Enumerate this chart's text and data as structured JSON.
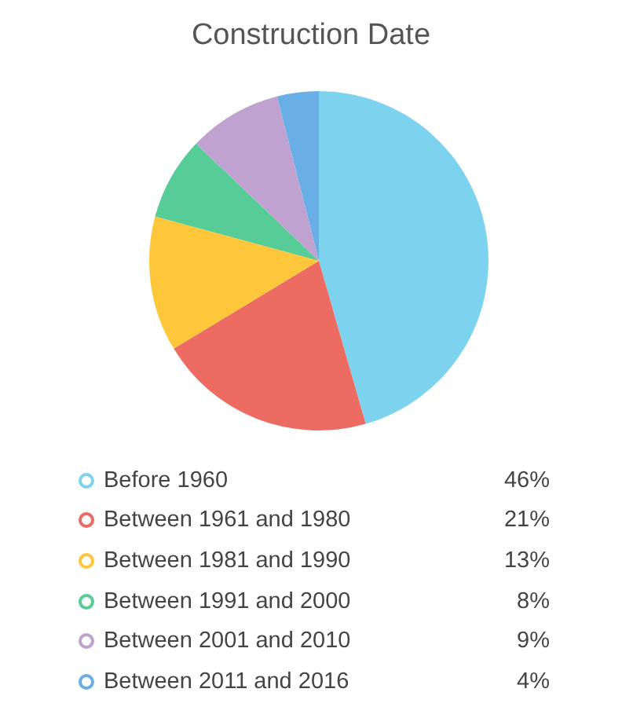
{
  "chart_data": {
    "type": "pie",
    "title": "Construction Date",
    "categories": [
      "Before 1960",
      "Between 1961 and 1980",
      "Between 1981 and 1990",
      "Between 1991 and 2000",
      "Between 2001 and 2010",
      "Between 2011 and 2016"
    ],
    "values": [
      46,
      21,
      13,
      8,
      9,
      4
    ],
    "value_labels": [
      "46%",
      "21%",
      "13%",
      "8%",
      "9%",
      "4%"
    ],
    "colors": [
      "#7dd3ee",
      "#ec6b62",
      "#fec63a",
      "#58cc97",
      "#bfa2d0",
      "#6aaee6"
    ],
    "legend": "bottom"
  }
}
